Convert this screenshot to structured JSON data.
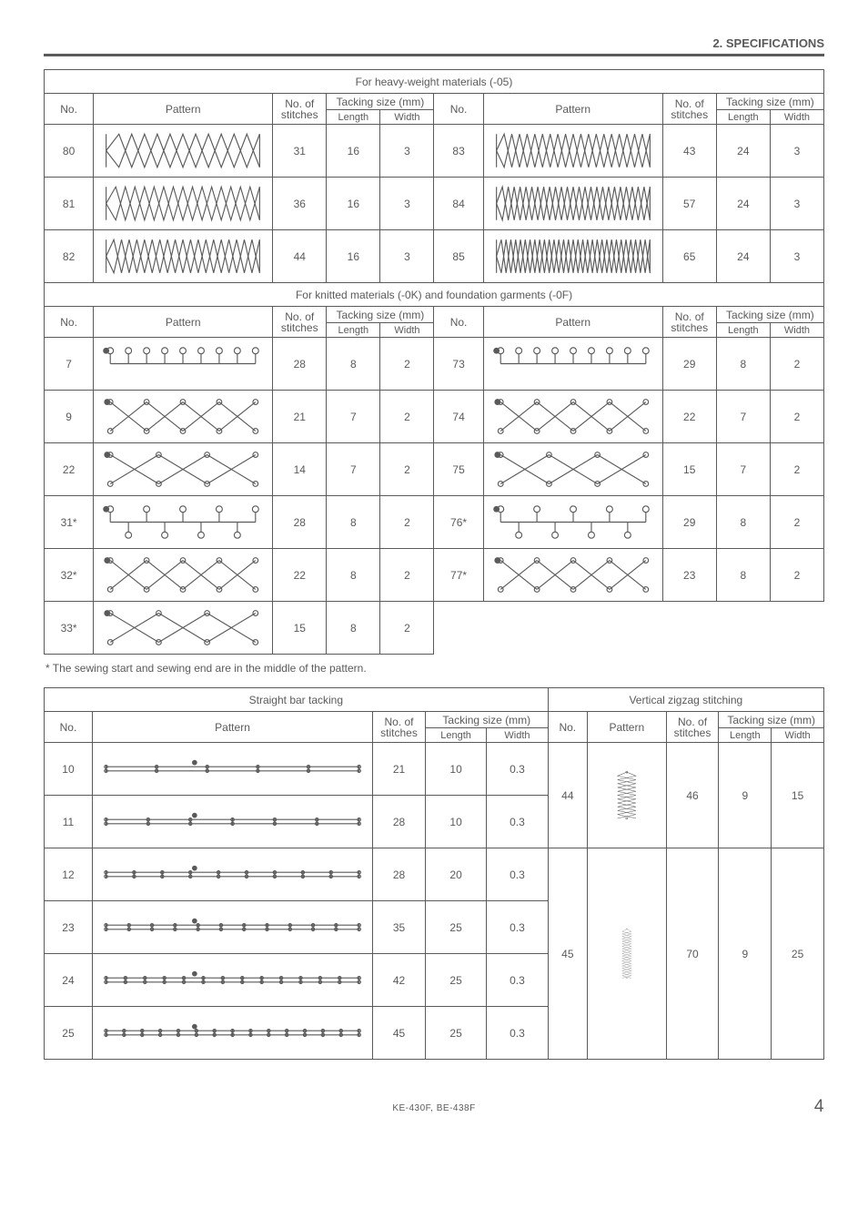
{
  "header": {
    "section_title": "2. SPECIFICATIONS"
  },
  "labels": {
    "no": "No.",
    "pattern": "Pattern",
    "stitches": "No. of\nstitches",
    "tacking": "Tacking size (mm)",
    "length": "Length",
    "width": "Width"
  },
  "sections": {
    "heavy": "For heavy-weight materials (-05)",
    "knitted": "For knitted materials (-0K) and foundation garments (-0F)",
    "straight": "Straight bar tacking",
    "verticalzz": "Vertical zigzag stitching"
  },
  "heavy_rows": [
    {
      "no": "80",
      "stitches": 31,
      "length": 16,
      "width": 3,
      "no2": "83",
      "stitches2": 43,
      "length2": 24,
      "width2": 3
    },
    {
      "no": "81",
      "stitches": 36,
      "length": 16,
      "width": 3,
      "no2": "84",
      "stitches2": 57,
      "length2": 24,
      "width2": 3
    },
    {
      "no": "82",
      "stitches": 44,
      "length": 16,
      "width": 3,
      "no2": "85",
      "stitches2": 65,
      "length2": 24,
      "width2": 3
    }
  ],
  "knitted_rows": [
    {
      "no": "7",
      "stitches": 28,
      "length": 8,
      "width": 2,
      "no2": "73",
      "stitches2": 29,
      "length2": 8,
      "width2": 2
    },
    {
      "no": "9",
      "stitches": 21,
      "length": 7,
      "width": 2,
      "no2": "74",
      "stitches2": 22,
      "length2": 7,
      "width2": 2
    },
    {
      "no": "22",
      "stitches": 14,
      "length": 7,
      "width": 2,
      "no2": "75",
      "stitches2": 15,
      "length2": 7,
      "width2": 2
    },
    {
      "no": "31*",
      "stitches": 28,
      "length": 8,
      "width": 2,
      "no2": "76*",
      "stitches2": 29,
      "length2": 8,
      "width2": 2
    },
    {
      "no": "32*",
      "stitches": 22,
      "length": 8,
      "width": 2,
      "no2": "77*",
      "stitches2": 23,
      "length2": 8,
      "width2": 2
    },
    {
      "no": "33*",
      "stitches": 15,
      "length": 8,
      "width": 2
    }
  ],
  "straight_rows": [
    {
      "no": "10",
      "stitches": 21,
      "length": 10,
      "width": "0.3"
    },
    {
      "no": "11",
      "stitches": 28,
      "length": 10,
      "width": "0.3"
    },
    {
      "no": "12",
      "stitches": 28,
      "length": 20,
      "width": "0.3"
    },
    {
      "no": "23",
      "stitches": 35,
      "length": 25,
      "width": "0.3"
    },
    {
      "no": "24",
      "stitches": 42,
      "length": 25,
      "width": "0.3"
    },
    {
      "no": "25",
      "stitches": 45,
      "length": 25,
      "width": "0.3"
    }
  ],
  "vertical_rows": [
    {
      "no": "44",
      "stitches": 46,
      "length": 9,
      "width": 15,
      "span": 2
    },
    {
      "no": "45",
      "stitches": 70,
      "length": 9,
      "width": 25,
      "span": 4
    }
  ],
  "footnote": "*   The sewing start and sewing end are in the middle of the pattern.",
  "footer": {
    "model": "KE-430F, BE-438F",
    "page": "4"
  },
  "style": {
    "stroke": "#5a5a5a",
    "fill": "#5a5a5a"
  }
}
